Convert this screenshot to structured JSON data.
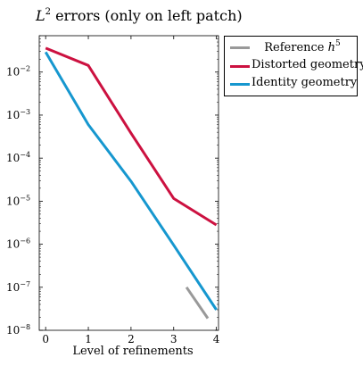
{
  "chart_data": {
    "type": "line",
    "title_main": "L",
    "title_sup": "2",
    "title_rest": " errors (only on left patch)",
    "xlabel": "Level of refinements",
    "ylabel": "",
    "xlim": [
      -0.15,
      4.05
    ],
    "x_ticks": [
      0,
      1,
      2,
      3,
      4
    ],
    "yscale": "log",
    "ylim": [
      1e-08,
      0.07
    ],
    "y_ticks": [
      {
        "value": 1e-08,
        "base": "10",
        "exp": "−8"
      },
      {
        "value": 1e-07,
        "base": "10",
        "exp": "−7"
      },
      {
        "value": 1e-06,
        "base": "10",
        "exp": "−6"
      },
      {
        "value": 1e-05,
        "base": "10",
        "exp": "−5"
      },
      {
        "value": 0.0001,
        "base": "10",
        "exp": "−4"
      },
      {
        "value": 0.001,
        "base": "10",
        "exp": "−3"
      },
      {
        "value": 0.01,
        "base": "10",
        "exp": "−2"
      }
    ],
    "legend_position": "outside-top-right",
    "grid": false,
    "series": [
      {
        "name_main": "Reference ",
        "name_var": "h",
        "name_sup": "5",
        "color": "#999999",
        "x": [
          3.3,
          3.8
        ],
        "y": [
          1e-07,
          1.9e-08
        ]
      },
      {
        "name_main": "Distorted geometry",
        "color": "#cc1140",
        "x": [
          0,
          1,
          2,
          3,
          4
        ],
        "y": [
          0.036,
          0.0143,
          0.00038,
          1.15e-05,
          2.8e-06
        ]
      },
      {
        "name_main": "Identity geometry",
        "color": "#1697cf",
        "x": [
          0,
          1,
          2,
          3,
          4
        ],
        "y": [
          0.029,
          0.0006,
          2.9e-05,
          9.5e-07,
          3e-08
        ]
      }
    ]
  }
}
